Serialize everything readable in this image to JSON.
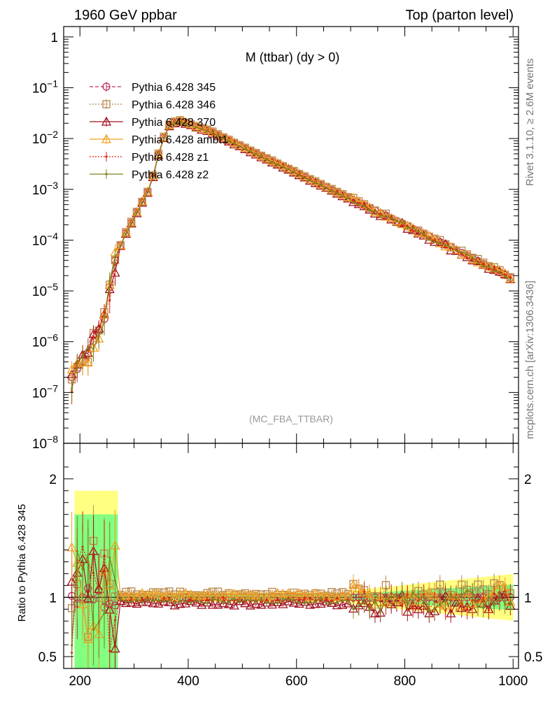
{
  "header": {
    "left": "1960 GeV ppbar",
    "right": "Top (parton level)"
  },
  "side_text": {
    "rivet": "Rivet 3.1.10, ≥ 2.6M events",
    "mcplots": "mcplots.cern.ch [arXiv:1306.3436]"
  },
  "chart_data": {
    "type": "line",
    "title": "M (ttbar) (dy > 0)",
    "watermark": "(MC_FBA_TTBAR)",
    "xlim": [
      170,
      1010
    ],
    "x_ticks": [
      "200",
      "400",
      "600",
      "800",
      "1000"
    ],
    "main_panel": {
      "yscale": "log",
      "ylim": [
        1e-08,
        1.6
      ],
      "y_tick_labels": [
        "1",
        "10^-1",
        "10^-2",
        "10^-3",
        "10^-4",
        "10^-5",
        "10^-6",
        "10^-7",
        "10^-8"
      ],
      "model": {
        "peak_x": 380,
        "peak_y": 0.023,
        "rise": [
          [
            185,
            2e-07
          ],
          [
            200,
            3.5e-07
          ],
          [
            215,
            6e-07
          ],
          [
            230,
            1.3e-06
          ],
          [
            245,
            2.8e-06
          ],
          [
            255,
            1.2e-05
          ],
          [
            265,
            4e-05
          ],
          [
            280,
            0.00011
          ],
          [
            295,
            0.00022
          ],
          [
            310,
            0.00045
          ],
          [
            330,
            0.0011
          ],
          [
            350,
            0.008
          ],
          [
            365,
            0.018
          ],
          [
            380,
            0.023
          ]
        ],
        "fall": [
          [
            380,
            0.023
          ],
          [
            440,
            0.014
          ],
          [
            500,
            0.0068
          ],
          [
            600,
            0.0021
          ],
          [
            700,
            0.00065
          ],
          [
            800,
            0.0002
          ],
          [
            900,
            6e-05
          ],
          [
            1000,
            1.7e-05
          ]
        ]
      }
    },
    "ratio_panel": {
      "ylabel": "Ratio to Pythia 6.428 345",
      "ylim": [
        0.4,
        2.3
      ],
      "y_tick_labels": [
        "0.5",
        "1",
        "2"
      ],
      "band_color_inner": "#80ff80",
      "band_color_outer": "#ffff80"
    },
    "series": [
      {
        "name": "Pythia 6.428 345",
        "color": "#c0305a",
        "marker": "circle-open",
        "dash": "5,3",
        "ratio_offset": 0.0,
        "scale": 1.0
      },
      {
        "name": "Pythia 6.428 346",
        "color": "#b8864a",
        "marker": "square-open",
        "dash": "2,2",
        "ratio_offset": 0.035,
        "scale": 1.03
      },
      {
        "name": "Pythia 6.428 370",
        "color": "#a01020",
        "marker": "triangle-open",
        "dash": "",
        "ratio_offset": -0.05,
        "scale": 0.96
      },
      {
        "name": "Pythia 6.428 ambt1",
        "color": "#f0a020",
        "marker": "triangle-open",
        "dash": "",
        "ratio_offset": 0.02,
        "scale": 1.02
      },
      {
        "name": "Pythia 6.428 z1",
        "color": "#e02010",
        "marker": "dot",
        "dash": "2,2",
        "ratio_offset": -0.02,
        "scale": 0.98
      },
      {
        "name": "Pythia 6.428 z2",
        "color": "#808020",
        "marker": "dot",
        "dash": "",
        "ratio_offset": -0.03,
        "scale": 0.97
      }
    ]
  }
}
